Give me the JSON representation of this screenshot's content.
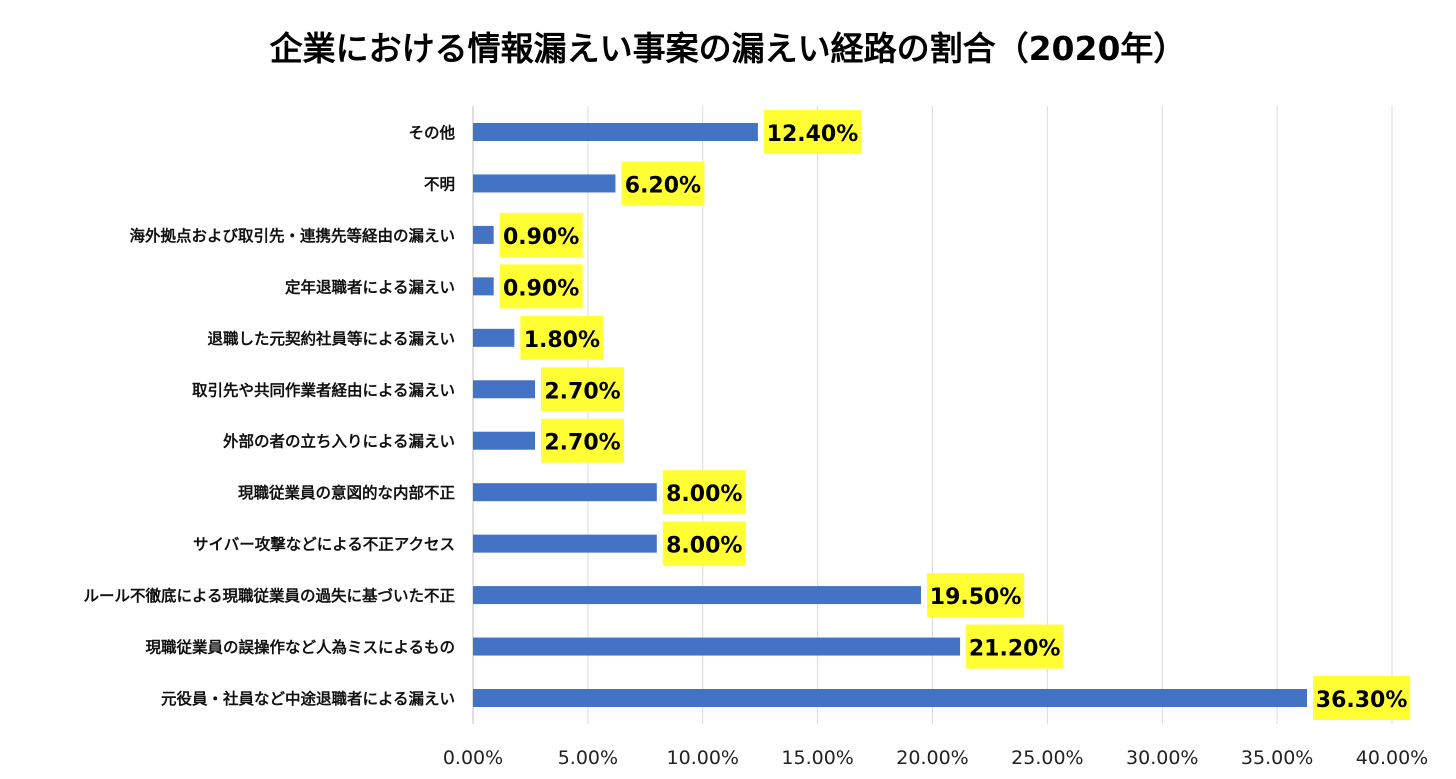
{
  "chart_data": {
    "type": "bar",
    "orientation": "horizontal",
    "title": "企業における情報漏えい事案の漏えい経路の割合（2020年）",
    "xlabel": "",
    "ylabel": "",
    "xlim": [
      0,
      40
    ],
    "x_ticks": [
      "0.00%",
      "5.00%",
      "10.00%",
      "15.00%",
      "20.00%",
      "25.00%",
      "30.00%",
      "35.00%",
      "40.00%"
    ],
    "grid": "vertical",
    "legend": "none",
    "bar_color": "#4472C4",
    "data_label_background": "#FFFF33",
    "categories": [
      "その他",
      "不明",
      "海外拠点および取引先・連携先等経由の漏えい",
      "定年退職者による漏えい",
      "退職した元契約社員等による漏えい",
      "取引先や共同作業者経由による漏えい",
      "外部の者の立ち入りによる漏えい",
      "現職従業員の意図的な内部不正",
      "サイバー攻撃などによる不正アクセス",
      "ルール不徹底による現職従業員の過失に基づいた不正",
      "現職従業員の誤操作など人為ミスによるもの",
      "元役員・社員など中途退職者による漏えい"
    ],
    "values": [
      12.4,
      6.2,
      0.9,
      0.9,
      1.8,
      2.7,
      2.7,
      8.0,
      8.0,
      19.5,
      21.2,
      36.3
    ],
    "data_labels": [
      "12.40%",
      "6.20%",
      "0.90%",
      "0.90%",
      "1.80%",
      "2.70%",
      "2.70%",
      "8.00%",
      "8.00%",
      "19.50%",
      "21.20%",
      "36.30%"
    ]
  }
}
